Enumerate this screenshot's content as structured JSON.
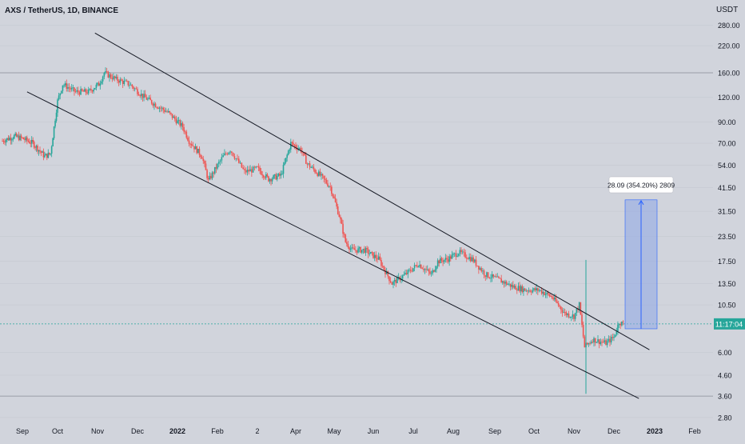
{
  "header": {
    "symbol_title": "AXS / TetherUS, 1D, BINANCE"
  },
  "price_scale": {
    "unit": "USDT",
    "scale": "log",
    "ticks": [
      280,
      220,
      160,
      120,
      90,
      70,
      54,
      41.5,
      31.5,
      23.5,
      17.5,
      13.5,
      10.5,
      6,
      4.6,
      3.6,
      2.8
    ],
    "tick_labels": [
      "280.00",
      "220.00",
      "160.00",
      "120.00",
      "90.00",
      "70.00",
      "54.00",
      "41.50",
      "31.50",
      "23.50",
      "17.50",
      "13.50",
      "10.50",
      "6.00",
      "4.60",
      "3.60",
      "2.80"
    ],
    "countdown_label": "11:17:04",
    "colors": {
      "countdown_bg": "#26a69a",
      "countdown_text": "#ffffff"
    }
  },
  "time_axis": {
    "labels": [
      "Sep",
      "Oct",
      "Nov",
      "Dec",
      "2022",
      "Feb",
      "2",
      "Apr",
      "May",
      "Jun",
      "Jul",
      "Aug",
      "Sep",
      "Oct",
      "Nov",
      "Dec",
      "2023",
      "Feb"
    ],
    "bold": [
      "2022",
      "2023"
    ]
  },
  "annotation": {
    "measure_label": "28.09 (354.20%) 2809",
    "colors": {
      "box_fill": "#8ea6e6",
      "box_stroke": "#2962ff"
    }
  },
  "colors": {
    "background": "#d1d4dc",
    "up": "#26a69a",
    "down": "#ef5350",
    "trendline": "#131722",
    "grid": "#c4c7cf",
    "text": "#131722"
  },
  "chart_data": {
    "type": "candlestick",
    "title": "AXS / TetherUS, 1D, BINANCE",
    "yscale": "log",
    "ylim": [
      2.8,
      280
    ],
    "grid": false,
    "series": [
      {
        "name": "AXS / TetherUS",
        "points": [
          [
            "2021-08-15",
            72
          ],
          [
            "2021-08-25",
            76
          ],
          [
            "2021-09-01",
            74
          ],
          [
            "2021-09-10",
            70
          ],
          [
            "2021-09-20",
            60
          ],
          [
            "2021-09-25",
            62
          ],
          [
            "2021-10-01",
            115
          ],
          [
            "2021-10-05",
            140
          ],
          [
            "2021-10-15",
            128
          ],
          [
            "2021-10-25",
            128
          ],
          [
            "2021-11-02",
            140
          ],
          [
            "2021-11-06",
            160
          ],
          [
            "2021-11-15",
            148
          ],
          [
            "2021-11-25",
            140
          ],
          [
            "2021-12-05",
            122
          ],
          [
            "2021-12-15",
            110
          ],
          [
            "2021-12-25",
            100
          ],
          [
            "2022-01-05",
            85
          ],
          [
            "2022-01-10",
            72
          ],
          [
            "2022-01-20",
            60
          ],
          [
            "2022-01-25",
            45
          ],
          [
            "2022-02-05",
            60
          ],
          [
            "2022-02-10",
            65
          ],
          [
            "2022-02-20",
            50
          ],
          [
            "2022-03-01",
            52
          ],
          [
            "2022-03-10",
            46
          ],
          [
            "2022-03-20",
            48
          ],
          [
            "2022-03-28",
            70
          ],
          [
            "2022-04-05",
            65
          ],
          [
            "2022-04-10",
            55
          ],
          [
            "2022-04-20",
            48
          ],
          [
            "2022-04-28",
            42
          ],
          [
            "2022-05-05",
            30
          ],
          [
            "2022-05-10",
            22
          ],
          [
            "2022-05-15",
            20
          ],
          [
            "2022-05-25",
            20
          ],
          [
            "2022-06-05",
            18
          ],
          [
            "2022-06-15",
            13.5
          ],
          [
            "2022-06-25",
            15
          ],
          [
            "2022-07-05",
            17
          ],
          [
            "2022-07-15",
            15
          ],
          [
            "2022-07-20",
            17.5
          ],
          [
            "2022-07-28",
            18
          ],
          [
            "2022-08-05",
            19.5
          ],
          [
            "2022-08-15",
            18
          ],
          [
            "2022-08-25",
            15
          ],
          [
            "2022-09-05",
            14
          ],
          [
            "2022-09-15",
            13
          ],
          [
            "2022-09-25",
            12.5
          ],
          [
            "2022-10-05",
            12.5
          ],
          [
            "2022-10-15",
            11.5
          ],
          [
            "2022-10-25",
            9.5
          ],
          [
            "2022-11-01",
            9.2
          ],
          [
            "2022-11-05",
            10.5
          ],
          [
            "2022-11-09",
            6.4
          ],
          [
            "2022-11-15",
            7
          ],
          [
            "2022-11-25",
            6.7
          ],
          [
            "2022-12-01",
            7.2
          ],
          [
            "2022-12-05",
            8.6
          ],
          [
            "2022-12-08",
            8.4
          ]
        ]
      }
    ],
    "trendlines": [
      {
        "from": [
          "2021-10-30",
          255
        ],
        "to": [
          "2022-12-28",
          6.2
        ]
      },
      {
        "from": [
          "2021-09-05",
          128
        ],
        "to": [
          "2022-12-20",
          3.5
        ]
      }
    ],
    "horizontal_lines": [
      160,
      8.4,
      3.6
    ],
    "measure": {
      "from_price": 7.93,
      "to_price": 36.02,
      "change": 28.09,
      "change_pct": 354.2,
      "bars": 2809
    }
  }
}
